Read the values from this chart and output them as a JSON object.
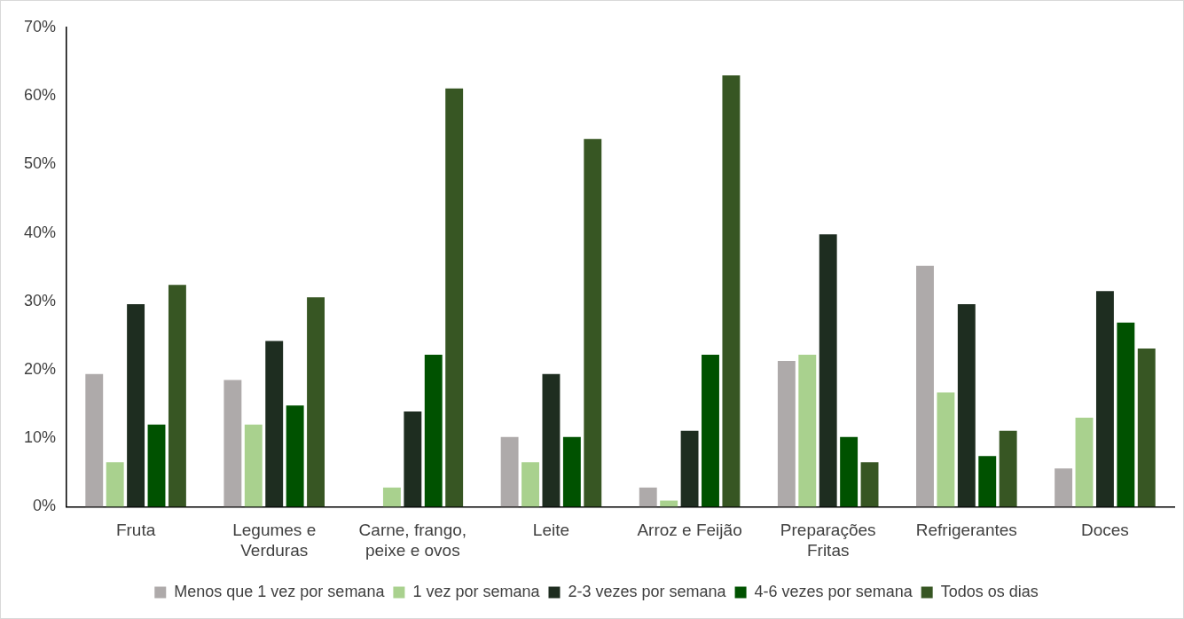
{
  "chart_data": {
    "type": "bar",
    "categories": [
      "Fruta",
      "Legumes e Verduras",
      "Carne, frango, peixe e ovos",
      "Leite",
      "Arroz e Feijão",
      "Preparações Fritas",
      "Refrigerantes",
      "Doces"
    ],
    "series": [
      {
        "name": "Menos que 1 vez por semana",
        "color": "#aeaaaa",
        "values": [
          19.4,
          18.5,
          0,
          10.2,
          2.8,
          21.3,
          35.2,
          5.6
        ]
      },
      {
        "name": "1 vez por semana",
        "color": "#a9d18e",
        "values": [
          6.5,
          12,
          2.8,
          6.5,
          0.9,
          22.2,
          16.7,
          13
        ]
      },
      {
        "name": "2-3 vezes por semana",
        "color": "#1e2d20",
        "values": [
          29.6,
          24.2,
          13.9,
          19.4,
          11.1,
          39.8,
          29.6,
          31.5
        ]
      },
      {
        "name": "4-6 vezes por semana",
        "color": "#005200",
        "values": [
          12,
          14.8,
          22.2,
          10.2,
          22.2,
          10.2,
          7.4,
          26.9
        ]
      },
      {
        "name": "Todos os dias",
        "color": "#375623",
        "values": [
          32.4,
          30.6,
          61.1,
          53.7,
          63,
          6.5,
          11.1,
          23.1
        ]
      }
    ],
    "ylim": [
      0,
      70
    ],
    "yticks": [
      {
        "value": 0,
        "label": "0%"
      },
      {
        "value": 10,
        "label": "10%"
      },
      {
        "value": 20,
        "label": "20%"
      },
      {
        "value": 30,
        "label": "30%"
      },
      {
        "value": 40,
        "label": "40%"
      },
      {
        "value": 50,
        "label": "50%"
      },
      {
        "value": 60,
        "label": "60%"
      },
      {
        "value": 70,
        "label": "70%"
      }
    ],
    "grid": false,
    "legend": "bottom"
  }
}
